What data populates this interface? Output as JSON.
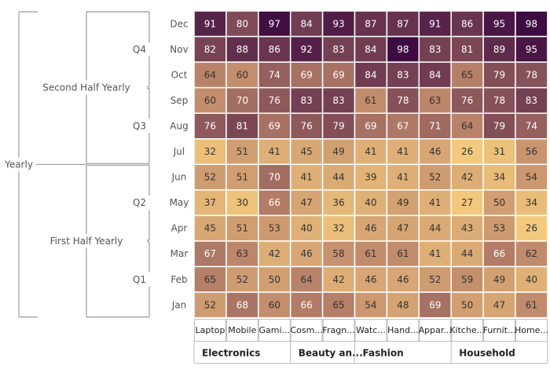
{
  "chart_data": {
    "type": "heatmap",
    "title": "",
    "row_hierarchy": {
      "level1": "Yearly",
      "halves": [
        {
          "label": "Second Half Yearly",
          "quarters": [
            {
              "label": "Q4",
              "months": [
                "Dec",
                "Nov",
                "Oct"
              ]
            },
            {
              "label": "Q3",
              "months": [
                "Sep",
                "Aug",
                "Jul"
              ]
            }
          ]
        },
        {
          "label": "First Half Yearly",
          "quarters": [
            {
              "label": "Q2",
              "months": [
                "Jun",
                "May",
                "Apr"
              ]
            },
            {
              "label": "Q1",
              "months": [
                "Mar",
                "Feb",
                "Jan"
              ]
            }
          ]
        }
      ]
    },
    "rows": [
      "Dec",
      "Nov",
      "Oct",
      "Sep",
      "Aug",
      "Jul",
      "Jun",
      "May",
      "Apr",
      "Mar",
      "Feb",
      "Jan"
    ],
    "columns": [
      "Laptop",
      "Mobile",
      "Gami...",
      "Cosm...",
      "Fragn...",
      "Watc...",
      "Hand...",
      "Appar...",
      "Kitche...",
      "Furnit...",
      "Home..."
    ],
    "column_groups": [
      {
        "label": "Electronics",
        "span": 3
      },
      {
        "label": "Beauty an...",
        "span": 2
      },
      {
        "label": "Fashion",
        "span": 3
      },
      {
        "label": "Household",
        "span": 3
      }
    ],
    "values": [
      [
        91,
        80,
        97,
        84,
        93,
        87,
        87,
        91,
        86,
        95,
        98
      ],
      [
        82,
        88,
        86,
        92,
        83,
        84,
        98,
        83,
        81,
        89,
        95
      ],
      [
        64,
        60,
        74,
        69,
        69,
        84,
        83,
        84,
        65,
        79,
        78
      ],
      [
        60,
        70,
        76,
        83,
        83,
        61,
        78,
        63,
        76,
        78,
        83
      ],
      [
        76,
        81,
        69,
        76,
        79,
        69,
        67,
        71,
        64,
        79,
        74
      ],
      [
        32,
        51,
        41,
        45,
        49,
        41,
        41,
        46,
        26,
        31,
        56
      ],
      [
        52,
        51,
        70,
        41,
        44,
        39,
        41,
        52,
        42,
        34,
        54
      ],
      [
        37,
        30,
        66,
        47,
        36,
        40,
        49,
        41,
        27,
        50,
        34
      ],
      [
        45,
        51,
        53,
        40,
        32,
        46,
        47,
        44,
        43,
        53,
        26
      ],
      [
        67,
        63,
        42,
        46,
        58,
        61,
        61,
        41,
        44,
        66,
        62
      ],
      [
        65,
        52,
        50,
        64,
        42,
        46,
        46,
        52,
        59,
        49,
        40
      ],
      [
        52,
        68,
        60,
        66,
        65,
        54,
        48,
        69,
        50,
        47,
        61
      ]
    ],
    "color_scale": {
      "min": 26,
      "max": 98,
      "low_color": "#f3ca7d",
      "mid_color": "#c08a6c",
      "high_color": "#3e0b41"
    },
    "colors": {
      "bracket": "#999999",
      "label": "#555555",
      "header_text": "#222222",
      "cell_border": "#ffffff",
      "dark_text": "#333333",
      "light_text": "#ffffff"
    }
  }
}
